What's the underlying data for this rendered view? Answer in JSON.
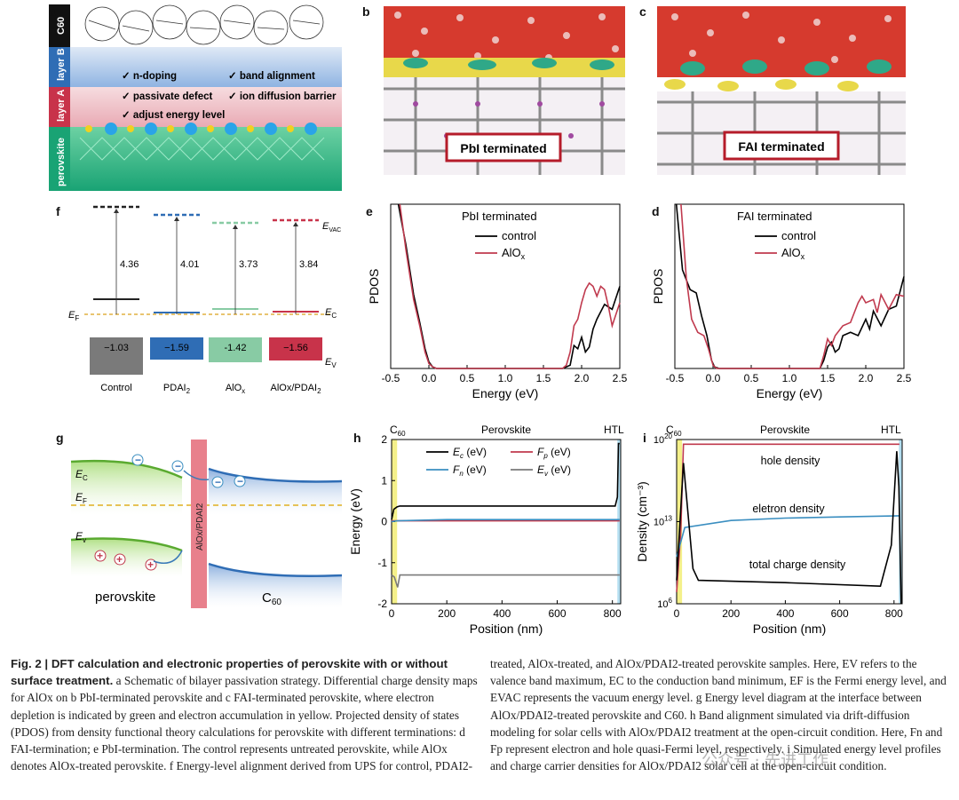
{
  "panel_labels": {
    "a": "a",
    "b": "b",
    "c": "c",
    "d": "d",
    "e": "e",
    "f": "f",
    "g": "g",
    "h": "h",
    "i": "i"
  },
  "panel_a": {
    "layers": [
      "C60",
      "layer B",
      "layer A",
      "perovskite"
    ],
    "checks": [
      "✓ n-doping",
      "✓ band alignment",
      "✓ passivate defect",
      "✓ ion diffusion barrier",
      "✓ adjust energy level"
    ]
  },
  "panel_b": {
    "label": "PbI terminated"
  },
  "panel_c": {
    "label": "FAI terminated"
  },
  "panel_f": {
    "samples": [
      "Control",
      "PDAI2",
      "AlOx",
      "AlOx/PDAI2"
    ],
    "work_functions": [
      4.36,
      4.01,
      3.73,
      3.84
    ],
    "vbm": [
      -1.03,
      -1.59,
      -1.42,
      -1.56
    ],
    "vbm_labels": [
      "−1.03",
      "−1.59",
      "-1.42",
      "−1.56"
    ],
    "level_labels": {
      "evac": "E",
      "evac_sub": "VAC",
      "ef": "E",
      "ef_sub": "F",
      "ec": "E",
      "ec_sub": "C",
      "ev": "E",
      "ev_sub": "V"
    },
    "colors": [
      "#222222",
      "#2f6db5",
      "#88cba4",
      "#c8334a"
    ],
    "vbm_colors": [
      "#7a7a7a",
      "#2f6db5",
      "#88cba4",
      "#c8334a"
    ]
  },
  "chart_data": [
    {
      "panel": "e",
      "type": "line",
      "title": "PbI terminated",
      "xlabel": "Energy (eV)",
      "ylabel": "PDOS",
      "xlim": [
        -0.5,
        2.5
      ],
      "xticks": [
        "-0.5",
        "0.0",
        "0.5",
        "1.0",
        "1.5",
        "2.0",
        "2.5"
      ],
      "series": [
        {
          "name": "control",
          "color": "#000000",
          "x": [
            -0.4,
            -0.3,
            -0.2,
            -0.12,
            -0.05,
            0.0,
            0.05,
            0.1,
            0.15,
            1.75,
            1.85,
            1.9,
            1.95,
            2.0,
            2.05,
            2.1,
            2.15,
            2.2,
            2.3,
            2.4,
            2.5
          ],
          "y": [
            1.0,
            0.75,
            0.45,
            0.28,
            0.12,
            0.04,
            0.01,
            0.0,
            0.0,
            0.0,
            0.02,
            0.14,
            0.12,
            0.19,
            0.1,
            0.13,
            0.24,
            0.3,
            0.39,
            0.36,
            0.5
          ]
        },
        {
          "name": "AlOx",
          "color": "#c03a4e",
          "x": [
            -0.38,
            -0.3,
            -0.2,
            -0.12,
            -0.05,
            0.0,
            0.05,
            0.1,
            1.75,
            1.8,
            1.85,
            1.9,
            1.95,
            2.0,
            2.05,
            2.1,
            2.15,
            2.2,
            2.25,
            2.3,
            2.35,
            2.4,
            2.5
          ],
          "y": [
            1.0,
            0.72,
            0.42,
            0.26,
            0.1,
            0.03,
            0.01,
            0.0,
            0.0,
            0.02,
            0.1,
            0.26,
            0.3,
            0.4,
            0.48,
            0.52,
            0.5,
            0.44,
            0.5,
            0.48,
            0.38,
            0.26,
            0.4
          ]
        }
      ]
    },
    {
      "panel": "d",
      "type": "line",
      "title": "FAI terminated",
      "xlabel": "Energy (eV)",
      "ylabel": "PDOS",
      "xlim": [
        -0.5,
        2.5
      ],
      "xticks": [
        "-0.5",
        "0.0",
        "0.5",
        "1.0",
        "1.5",
        "2.0",
        "2.5"
      ],
      "series": [
        {
          "name": "control",
          "color": "#000000",
          "x": [
            -0.48,
            -0.4,
            -0.3,
            -0.22,
            -0.15,
            -0.08,
            -0.02,
            0.02,
            0.08,
            1.4,
            1.45,
            1.5,
            1.55,
            1.6,
            1.65,
            1.7,
            1.8,
            1.9,
            2.0,
            2.05,
            2.1,
            2.2,
            2.3,
            2.4,
            2.5
          ],
          "y": [
            1.0,
            0.6,
            0.48,
            0.46,
            0.32,
            0.2,
            0.05,
            0.01,
            0.0,
            0.0,
            0.05,
            0.13,
            0.16,
            0.1,
            0.12,
            0.2,
            0.22,
            0.2,
            0.3,
            0.24,
            0.35,
            0.26,
            0.36,
            0.38,
            0.56
          ]
        },
        {
          "name": "AlOx",
          "color": "#c03a4e",
          "x": [
            -0.42,
            -0.35,
            -0.28,
            -0.2,
            -0.12,
            -0.06,
            0.0,
            0.05,
            1.4,
            1.45,
            1.5,
            1.55,
            1.6,
            1.7,
            1.8,
            1.9,
            1.95,
            2.0,
            2.1,
            2.15,
            2.2,
            2.3,
            2.4,
            2.5
          ],
          "y": [
            1.0,
            0.55,
            0.3,
            0.22,
            0.2,
            0.12,
            0.02,
            0.0,
            0.0,
            0.08,
            0.18,
            0.14,
            0.2,
            0.26,
            0.28,
            0.4,
            0.44,
            0.4,
            0.42,
            0.34,
            0.45,
            0.36,
            0.45,
            0.44
          ]
        }
      ]
    },
    {
      "panel": "h",
      "type": "line",
      "xlabel": "Position (nm)",
      "ylabel": "Energy (eV)",
      "xlim": [
        0,
        830
      ],
      "ylim": [
        -2,
        2
      ],
      "xticks": [
        "0",
        "200",
        "400",
        "600",
        "800"
      ],
      "yticks": [
        "-2",
        "-1",
        "0",
        "1",
        "2"
      ],
      "top_labels": [
        "C60",
        "Perovskite",
        "HTL"
      ],
      "series": [
        {
          "name": "Ec (eV)",
          "color": "#000000",
          "x": [
            0,
            8,
            20,
            30,
            810,
            818,
            822,
            826
          ],
          "y": [
            0.05,
            0.3,
            0.36,
            0.38,
            0.38,
            0.6,
            1.9,
            1.9
          ]
        },
        {
          "name": "Fp (eV)",
          "color": "#c03a4e",
          "x": [
            0,
            826
          ],
          "y": [
            0.02,
            0.02
          ]
        },
        {
          "name": "Fn (eV)",
          "color": "#3a8ec0",
          "x": [
            0,
            20,
            200,
            600,
            826
          ],
          "y": [
            0.0,
            0.02,
            0.05,
            0.05,
            0.05
          ]
        },
        {
          "name": "Ev (eV)",
          "color": "#7a7a7a",
          "x": [
            0,
            10,
            22,
            30,
            826
          ],
          "y": [
            -1.3,
            -1.35,
            -1.6,
            -1.3,
            -1.3
          ]
        }
      ],
      "legend": [
        {
          "sym": "E",
          "sub": "c",
          "unit": " (eV)",
          "color": "#000000"
        },
        {
          "sym": "F",
          "sub": "p",
          "unit": " (eV)",
          "color": "#c03a4e"
        },
        {
          "sym": "F",
          "sub": "n",
          "unit": " (eV)",
          "color": "#3a8ec0"
        },
        {
          "sym": "E",
          "sub": "v",
          "unit": " (eV)",
          "color": "#7a7a7a"
        }
      ]
    },
    {
      "panel": "i",
      "type": "line",
      "xlabel": "Position (nm)",
      "ylabel": "Density (cm⁻³)",
      "xlim": [
        0,
        830
      ],
      "ylog": [
        6,
        20
      ],
      "xticks": [
        "0",
        "200",
        "400",
        "600",
        "800"
      ],
      "top_labels": [
        "C60",
        "Perovskite",
        "HTL"
      ],
      "annotations": [
        "hole density",
        "eletron density",
        "total charge density"
      ],
      "series": [
        {
          "name": "hole density",
          "color": "#c03a4e",
          "x": [
            0,
            15,
            25,
            820
          ],
          "y": [
            7,
            12,
            19.6,
            19.6
          ]
        },
        {
          "name": "eletron density",
          "color": "#3a8ec0",
          "x": [
            0,
            30,
            200,
            400,
            600,
            820
          ],
          "y": [
            10,
            12.5,
            13.1,
            13.3,
            13.4,
            13.5
          ]
        },
        {
          "name": "total charge density",
          "color": "#000000",
          "x": [
            0,
            15,
            25,
            60,
            80,
            400,
            750,
            790,
            810,
            818,
            826
          ],
          "y": [
            8,
            14,
            18,
            9,
            8,
            7.8,
            7.5,
            11,
            19,
            16,
            6
          ]
        }
      ]
    }
  ],
  "panel_g": {
    "labels": {
      "ec": "E",
      "ec_sub": "C",
      "ef": "E",
      "ef_sub": "F",
      "ev": "E",
      "ev_sub": "v",
      "left": "perovskite",
      "right": "C",
      "right_sub": "60",
      "mid": "AlOx/PDAI2"
    }
  },
  "caption": {
    "fig": "Fig. 2 | DFT calculation and electronic properties of perovskite with or without surface treatment.",
    "col1": " a Schematic of bilayer passivation strategy. Differential charge density maps for AlOx on b PbI-terminated perovskite and c FAI-terminated perovskite, where electron depletion is indicated by green and electron accumulation in yellow. Projected density of states (PDOS) from density functional theory calculations for perovskite with different terminations: d FAI-termination; e PbI-termination. The control represents untreated perovskite, while AlOx denotes AlOx-treated perovskite. f Energy-level alignment derived from UPS for control, PDAI2-",
    "col2": "treated, AlOx-treated, and AlOx/PDAI2-treated perovskite samples. Here, EV refers to the valence band maximum, EC to the conduction band minimum, EF is the Fermi energy level, and EVAC represents the vacuum energy level. g Energy level diagram at the interface between AlOx/PDAI2-treated perovskite and C60. h Band alignment simulated via drift-diffusion modeling for solar cells with AlOx/PDAI2 treatment at the open-circuit condition. Here, Fn and Fp represent electron and hole quasi-Fermi level, respectively. i Simulated energy level profiles and charge carrier densities for AlOx/PDAI2 solar cell at the open-circuit condition."
  },
  "watermark": "公众号 · 先进工作"
}
